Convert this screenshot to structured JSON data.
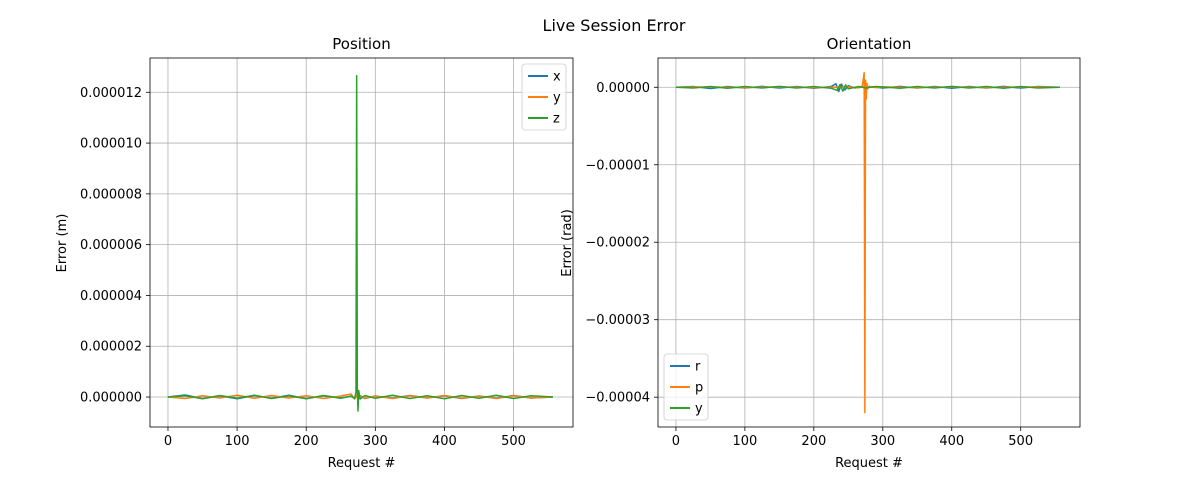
{
  "figure": {
    "title": "Live Session Error"
  },
  "colors": {
    "series1": "#1f77b4",
    "series2": "#ff7f0e",
    "series3": "#2ca02c",
    "grid": "#b0b0b0"
  },
  "chart_data": [
    {
      "type": "line",
      "title": "Position",
      "xlabel": "Request #",
      "ylabel": "Error (m)",
      "xlim": [
        -26,
        586
      ],
      "ylim": [
        -1.18e-06,
        1.335e-05
      ],
      "xticks": [
        0,
        100,
        200,
        300,
        400,
        500
      ],
      "xtick_labels": [
        "0",
        "100",
        "200",
        "300",
        "400",
        "500"
      ],
      "yticks": [
        0,
        2e-06,
        4e-06,
        6e-06,
        8e-06,
        1e-05,
        1.2e-05
      ],
      "ytick_labels": [
        "0.000000",
        "0.000002",
        "0.000004",
        "0.000006",
        "0.000008",
        "0.000010",
        "0.000012"
      ],
      "grid": true,
      "legend_position": "top-right",
      "series": [
        {
          "name": "x",
          "color": "#1f77b4",
          "x": [
            0,
            25,
            50,
            75,
            100,
            125,
            150,
            175,
            200,
            225,
            250,
            265,
            270,
            273,
            275,
            278,
            285,
            300,
            325,
            350,
            375,
            400,
            425,
            450,
            475,
            500,
            525,
            557
          ],
          "y": [
            0,
            8e-08,
            -6e-08,
            5e-08,
            -7e-08,
            6e-08,
            -5e-08,
            7e-08,
            -6e-08,
            5e-08,
            -4e-08,
            3e-08,
            -5e-08,
            6e-08,
            -4e-08,
            5e-08,
            -6e-08,
            4e-08,
            -5e-08,
            6e-08,
            -4e-08,
            5e-08,
            -6e-08,
            4e-08,
            -5e-08,
            6e-08,
            -4e-08,
            0
          ]
        },
        {
          "name": "y",
          "color": "#ff7f0e",
          "x": [
            0,
            25,
            50,
            75,
            100,
            125,
            150,
            175,
            200,
            225,
            250,
            265,
            270,
            273,
            275,
            278,
            285,
            300,
            325,
            350,
            375,
            400,
            425,
            450,
            475,
            500,
            525,
            557
          ],
          "y": [
            0,
            -6e-08,
            5e-08,
            -4e-08,
            7e-08,
            -5e-08,
            6e-08,
            -4e-08,
            5e-08,
            -6e-08,
            4e-08,
            1.2e-07,
            -8e-08,
            9e-08,
            -1e-07,
            6e-08,
            -5e-08,
            4e-08,
            -6e-08,
            5e-08,
            -4e-08,
            6e-08,
            -5e-08,
            4e-08,
            -6e-08,
            5e-08,
            -4e-08,
            0
          ]
        },
        {
          "name": "z",
          "color": "#2ca02c",
          "x": [
            0,
            25,
            50,
            75,
            100,
            125,
            150,
            175,
            200,
            225,
            250,
            265,
            270,
            272,
            273,
            274,
            275,
            276,
            278,
            285,
            300,
            325,
            350,
            375,
            400,
            425,
            450,
            475,
            500,
            525,
            557
          ],
          "y": [
            0,
            5e-08,
            -7e-08,
            6e-08,
            -5e-08,
            7e-08,
            -6e-08,
            5e-08,
            -7e-08,
            6e-08,
            -5e-08,
            4e-08,
            -6e-08,
            2e-07,
            1.265e-05,
            2e-07,
            -5.5e-07,
            2.5e-07,
            -8e-08,
            6e-08,
            -5e-08,
            7e-08,
            -6e-08,
            5e-08,
            -7e-08,
            6e-08,
            -5e-08,
            7e-08,
            -6e-08,
            5e-08,
            0
          ]
        }
      ]
    },
    {
      "type": "line",
      "title": "Orientation",
      "xlabel": "Request #",
      "ylabel": "Error (rad)",
      "xlim": [
        -26,
        586
      ],
      "ylim": [
        -4.385e-05,
        3.78e-06
      ],
      "xticks": [
        0,
        100,
        200,
        300,
        400,
        500
      ],
      "xtick_labels": [
        "0",
        "100",
        "200",
        "300",
        "400",
        "500"
      ],
      "yticks": [
        0,
        -1e-05,
        -2e-05,
        -3e-05,
        -4e-05
      ],
      "ytick_labels": [
        "0.00000",
        "−0.00001",
        "−0.00002",
        "−0.00003",
        "−0.00004"
      ],
      "grid": true,
      "legend_position": "bottom-left",
      "series": [
        {
          "name": "r",
          "color": "#1f77b4",
          "x": [
            0,
            25,
            50,
            75,
            100,
            125,
            150,
            175,
            200,
            225,
            232,
            236,
            240,
            245,
            250,
            260,
            270,
            275,
            280,
            300,
            325,
            350,
            375,
            400,
            425,
            450,
            475,
            500,
            525,
            557
          ],
          "y": [
            0,
            1e-07,
            -1.5e-07,
            1e-07,
            -1e-07,
            1.2e-07,
            -1e-07,
            1e-07,
            -1.2e-07,
            1e-07,
            4.5e-07,
            -5.5e-07,
            4e-07,
            -3.5e-07,
            2e-07,
            -1e-07,
            1e-07,
            -1.2e-07,
            1e-07,
            -1e-07,
            1.2e-07,
            -1e-07,
            1e-07,
            -1.2e-07,
            1e-07,
            -1e-07,
            1.2e-07,
            -1e-07,
            1e-07,
            0
          ]
        },
        {
          "name": "p",
          "color": "#ff7f0e",
          "x": [
            0,
            50,
            100,
            150,
            200,
            250,
            265,
            270,
            272,
            273,
            274,
            275,
            276,
            277,
            278,
            280,
            290,
            300,
            350,
            400,
            450,
            500,
            557
          ],
          "y": [
            0,
            5e-08,
            -5e-08,
            5e-08,
            -5e-08,
            5e-08,
            -8e-08,
            1e-07,
            1.2e-06,
            1.9e-06,
            -4.2e-05,
            9e-07,
            -1.5e-06,
            5e-07,
            -2e-07,
            1e-07,
            -5e-08,
            5e-08,
            -5e-08,
            5e-08,
            -5e-08,
            5e-08,
            0
          ]
        },
        {
          "name": "y",
          "color": "#2ca02c",
          "x": [
            0,
            25,
            50,
            75,
            100,
            125,
            150,
            175,
            200,
            225,
            234,
            238,
            242,
            246,
            250,
            265,
            275,
            290,
            325,
            350,
            375,
            400,
            425,
            450,
            475,
            500,
            525,
            557
          ],
          "y": [
            0,
            -1e-07,
            1e-07,
            -1.2e-07,
            1e-07,
            -1e-07,
            1.2e-07,
            -1e-07,
            1e-07,
            -1.2e-07,
            -4e-07,
            3.5e-07,
            -5e-07,
            3e-07,
            -2e-07,
            1e-07,
            -1e-07,
            1e-07,
            -1.2e-07,
            1e-07,
            -1e-07,
            1.2e-07,
            -1e-07,
            1e-07,
            -1.2e-07,
            1e-07,
            -1e-07,
            0
          ]
        }
      ]
    }
  ]
}
